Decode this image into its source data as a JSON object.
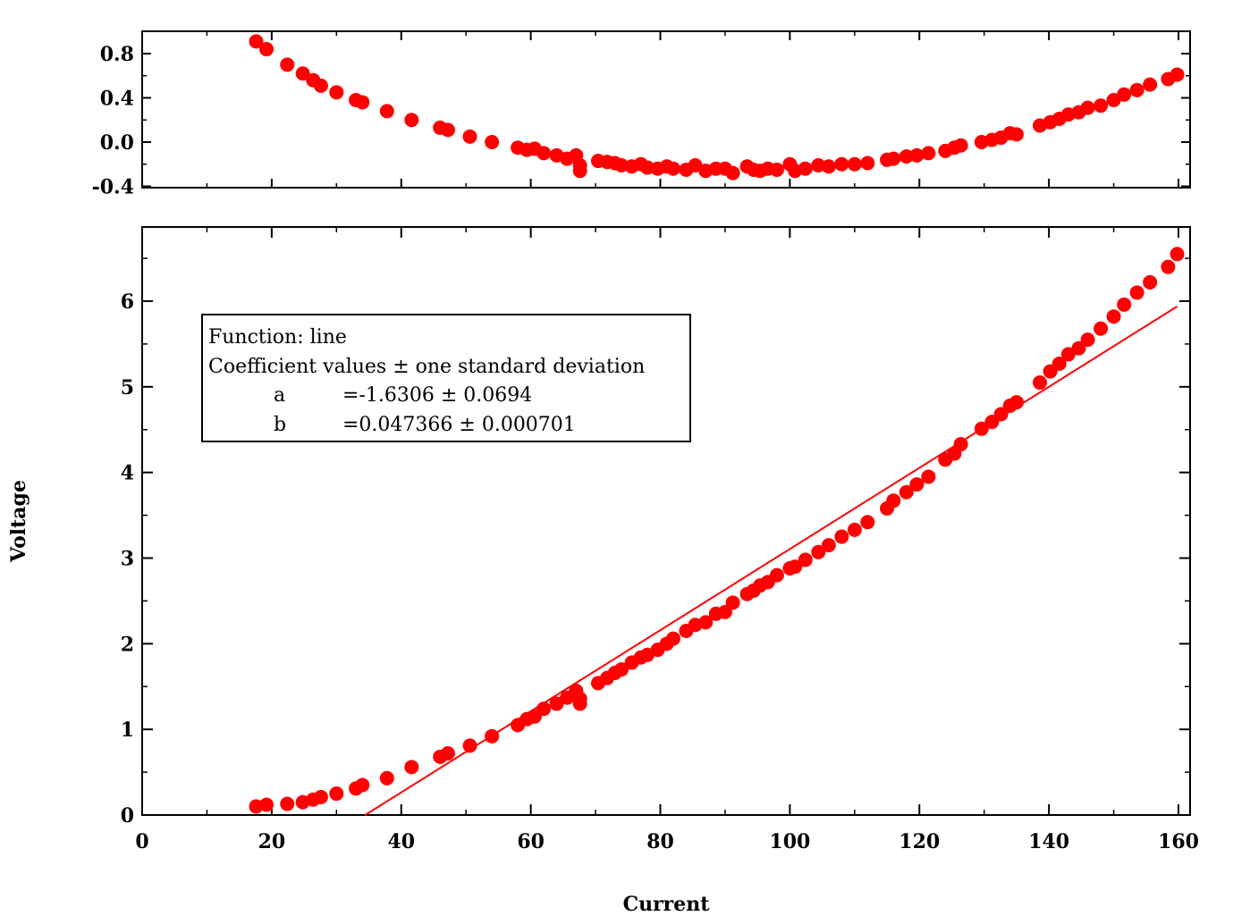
{
  "chart_data": [
    {
      "type": "scatter",
      "panel": "residuals",
      "xlim": [
        0,
        162
      ],
      "ylim": [
        -0.42,
        1.0
      ],
      "yticks": [
        "0.8",
        "0.4",
        "0.0",
        "-0.4"
      ],
      "ytick_values": [
        0.8,
        0.4,
        0.0,
        -0.4
      ],
      "grid": false,
      "color": "#ff0000",
      "series": [
        {
          "x": [
            17.6,
            19.2,
            22.4,
            24.8,
            26.4,
            27.6,
            30.0,
            33.0,
            34.0,
            37.8,
            41.6,
            46.0,
            47.2,
            50.6,
            54.0,
            58.0,
            59.4,
            60.6,
            62.0,
            64.0,
            65.6,
            67.0,
            67.6,
            67.6,
            70.4,
            71.8,
            73.0,
            74.0,
            75.6,
            77.0,
            78.0,
            79.6,
            81.0,
            82.0,
            84.0,
            85.4,
            87.0,
            88.6,
            90.0,
            91.2,
            93.4,
            94.4,
            95.4,
            96.6,
            98.0,
            100.0,
            100.8,
            102.4,
            104.4,
            106.0,
            108.0,
            110.0,
            112.0,
            115.0,
            116.0,
            118.0,
            119.6,
            121.4,
            124.0,
            125.4,
            126.4,
            129.6,
            131.2,
            132.6,
            134.0,
            135.0,
            138.6,
            140.2,
            141.6,
            143.0,
            144.6,
            146.0,
            148.0,
            150.0,
            151.6,
            153.6,
            155.6,
            158.4,
            159.8
          ],
          "y": [
            0.91,
            0.84,
            0.7,
            0.62,
            0.56,
            0.51,
            0.45,
            0.38,
            0.36,
            0.28,
            0.2,
            0.13,
            0.11,
            0.05,
            0.0,
            -0.05,
            -0.07,
            -0.06,
            -0.1,
            -0.12,
            -0.15,
            -0.12,
            -0.21,
            -0.26,
            -0.17,
            -0.18,
            -0.19,
            -0.21,
            -0.22,
            -0.2,
            -0.23,
            -0.24,
            -0.22,
            -0.24,
            -0.25,
            -0.21,
            -0.26,
            -0.24,
            -0.24,
            -0.28,
            -0.22,
            -0.25,
            -0.26,
            -0.24,
            -0.25,
            -0.2,
            -0.26,
            -0.24,
            -0.21,
            -0.22,
            -0.2,
            -0.2,
            -0.19,
            -0.16,
            -0.15,
            -0.13,
            -0.12,
            -0.1,
            -0.08,
            -0.05,
            -0.03,
            0.0,
            0.02,
            0.04,
            0.08,
            0.07,
            0.15,
            0.18,
            0.21,
            0.25,
            0.27,
            0.31,
            0.33,
            0.38,
            0.43,
            0.47,
            0.52,
            0.57,
            0.61
          ]
        }
      ]
    },
    {
      "type": "scatter",
      "panel": "main",
      "xlabel": "Current",
      "ylabel": "Voltage",
      "xlim": [
        0,
        162
      ],
      "ylim": [
        0,
        6.9
      ],
      "xticks": [
        "0",
        "20",
        "40",
        "60",
        "80",
        "100",
        "120",
        "140",
        "160"
      ],
      "xtick_values": [
        0,
        20,
        40,
        60,
        80,
        100,
        120,
        140,
        160
      ],
      "yticks": [
        "0",
        "1",
        "2",
        "3",
        "4",
        "5",
        "6"
      ],
      "ytick_values": [
        0,
        1,
        2,
        3,
        4,
        5,
        6
      ],
      "grid": false,
      "color": "#ff0000",
      "series": [
        {
          "x": [
            17.6,
            19.2,
            22.4,
            24.8,
            26.4,
            27.6,
            30.0,
            33.0,
            34.0,
            37.8,
            41.6,
            46.0,
            47.2,
            50.6,
            54.0,
            58.0,
            59.4,
            60.6,
            62.0,
            64.0,
            65.6,
            67.0,
            67.6,
            67.6,
            70.4,
            71.8,
            73.0,
            74.0,
            75.6,
            77.0,
            78.0,
            79.6,
            81.0,
            82.0,
            84.0,
            85.4,
            87.0,
            88.6,
            90.0,
            91.2,
            93.4,
            94.4,
            95.4,
            96.6,
            98.0,
            100.0,
            100.8,
            102.4,
            104.4,
            106.0,
            108.0,
            110.0,
            112.0,
            115.0,
            116.0,
            118.0,
            119.6,
            121.4,
            124.0,
            125.4,
            126.4,
            129.6,
            131.2,
            132.6,
            134.0,
            135.0,
            138.6,
            140.2,
            141.6,
            143.0,
            144.6,
            146.0,
            148.0,
            150.0,
            151.6,
            153.6,
            155.6,
            158.4,
            159.8
          ],
          "y": [
            0.1,
            0.12,
            0.13,
            0.15,
            0.18,
            0.21,
            0.25,
            0.31,
            0.35,
            0.43,
            0.56,
            0.68,
            0.72,
            0.81,
            0.92,
            1.05,
            1.12,
            1.15,
            1.24,
            1.3,
            1.37,
            1.45,
            1.36,
            1.3,
            1.54,
            1.6,
            1.66,
            1.7,
            1.78,
            1.84,
            1.87,
            1.93,
            2.0,
            2.06,
            2.15,
            2.22,
            2.25,
            2.35,
            2.37,
            2.48,
            2.58,
            2.62,
            2.68,
            2.72,
            2.8,
            2.88,
            2.9,
            2.98,
            3.07,
            3.15,
            3.25,
            3.33,
            3.42,
            3.58,
            3.67,
            3.77,
            3.86,
            3.95,
            4.15,
            4.22,
            4.33,
            4.51,
            4.59,
            4.68,
            4.78,
            4.82,
            5.05,
            5.18,
            5.27,
            5.38,
            5.45,
            5.55,
            5.68,
            5.82,
            5.96,
            6.1,
            6.22,
            6.4,
            6.55
          ]
        }
      ],
      "fit_line": {
        "function": "line",
        "a": -1.6306,
        "b": 0.047366,
        "x_range": [
          34.4,
          159.8
        ],
        "color": "#ff0000"
      }
    }
  ],
  "legend": {
    "line1": "Function: line",
    "line2": "Coefficient values ± one standard deviation",
    "a_name": "a",
    "a_value": "=-1.6306 ± 0.0694",
    "b_name": "b",
    "b_value": "=0.047366 ± 0.000701"
  }
}
